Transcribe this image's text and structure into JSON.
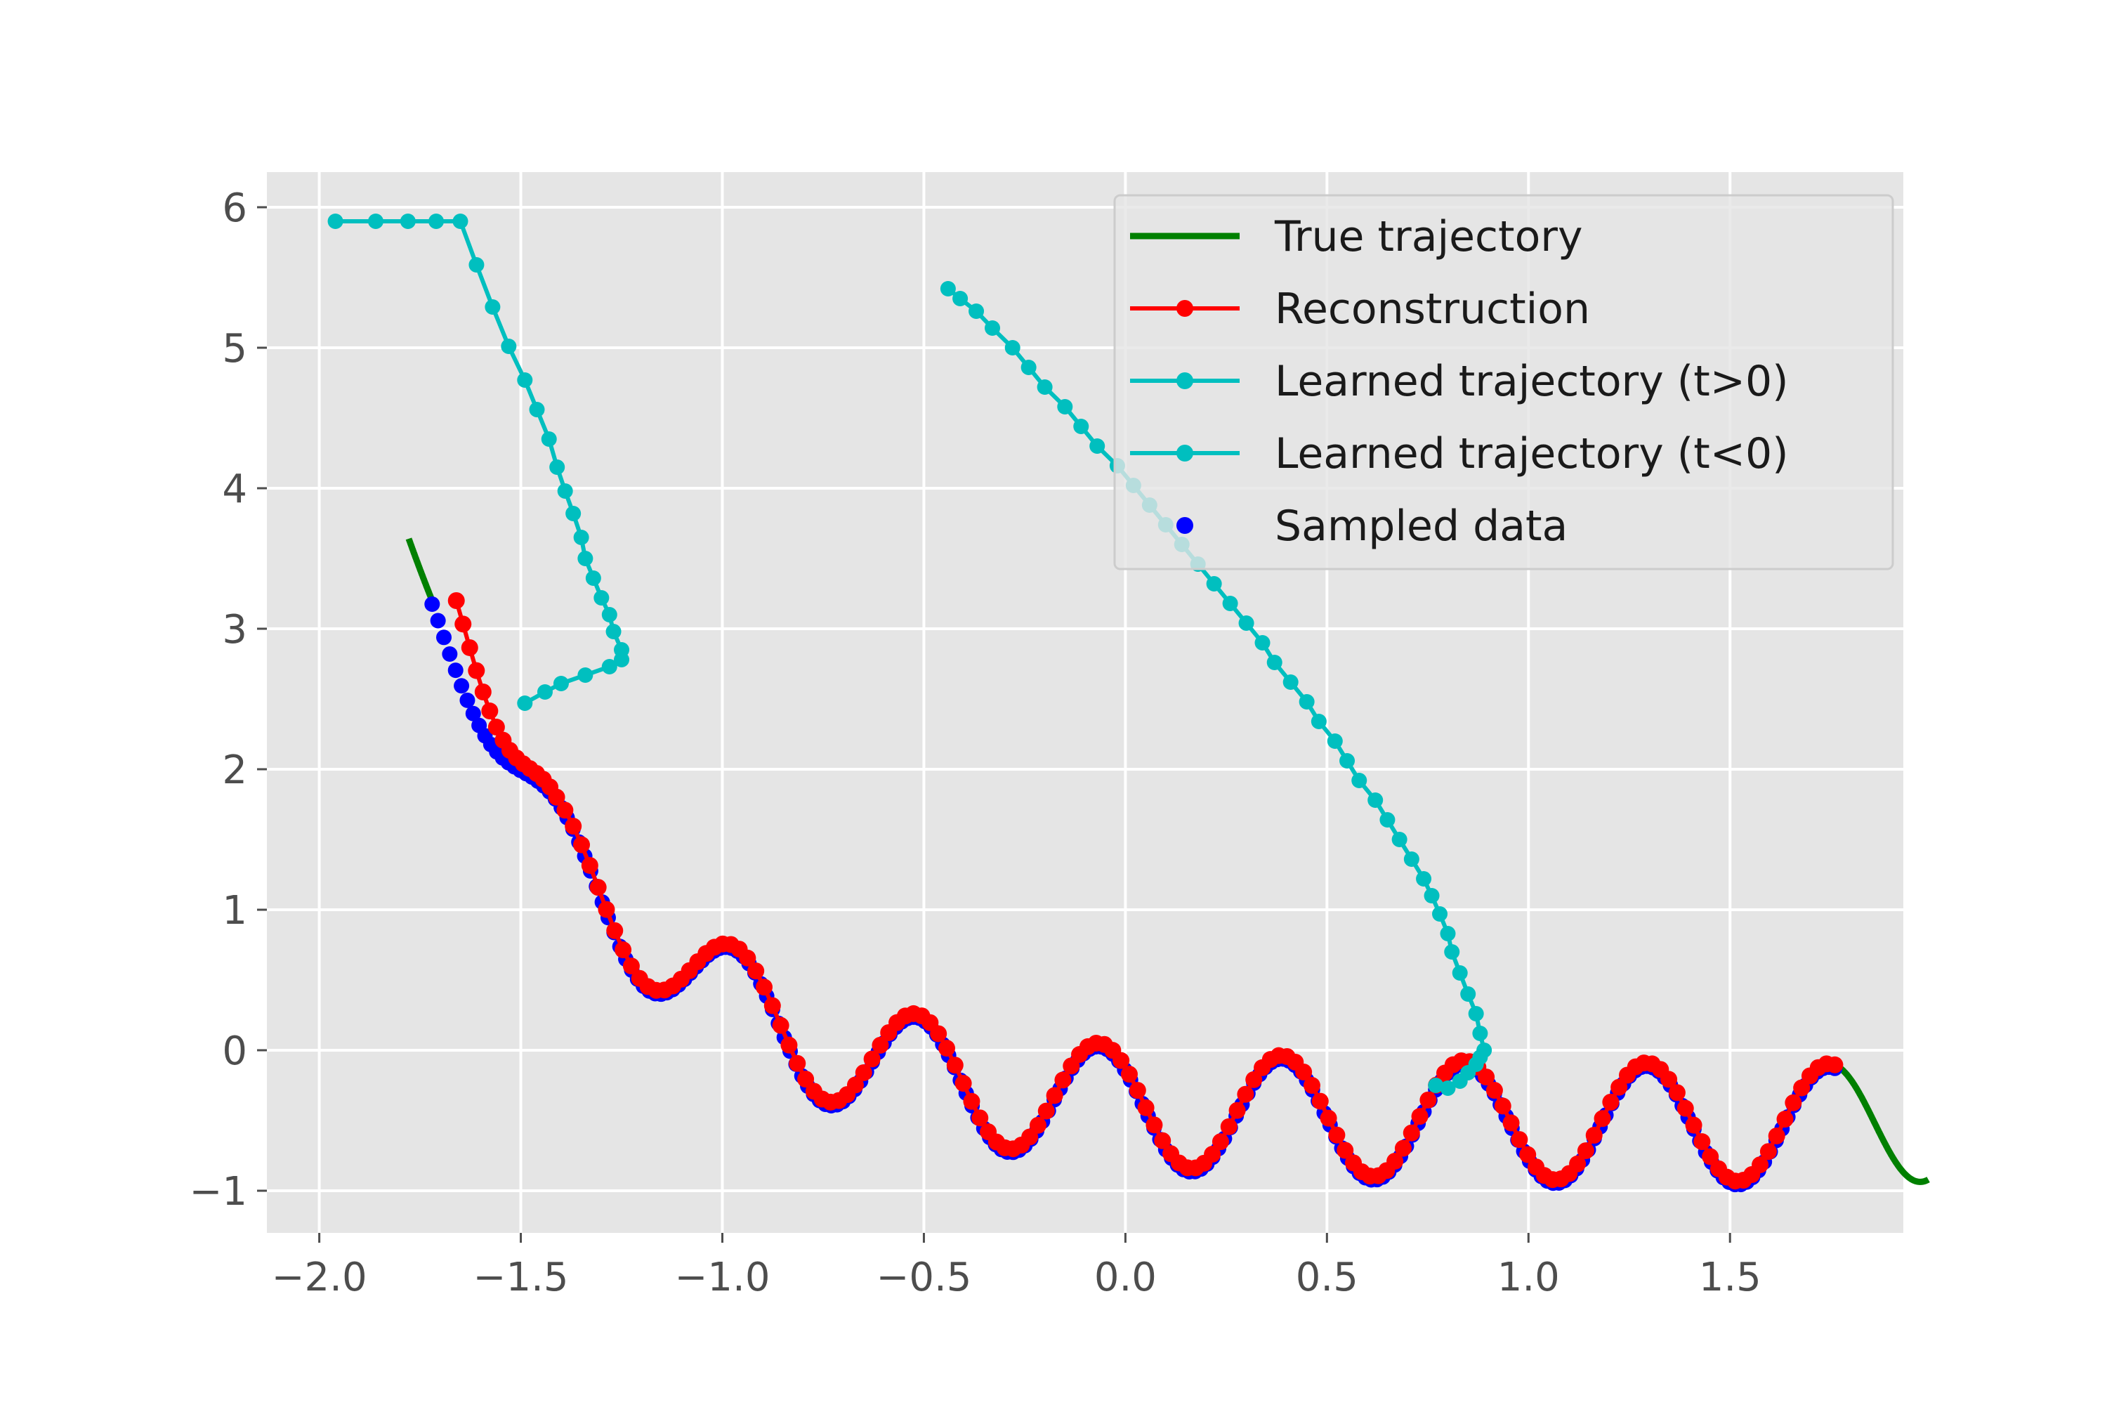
{
  "chart_data": {
    "type": "line",
    "title": "",
    "xlabel": "",
    "ylabel": "",
    "xlim": [
      -2.13,
      1.93
    ],
    "ylim": [
      -1.3,
      6.25
    ],
    "xticks": [
      -2.0,
      -1.5,
      -1.0,
      -0.5,
      0.0,
      0.5,
      1.0,
      1.5
    ],
    "xtick_labels": [
      "−2.0",
      "−1.5",
      "−1.0",
      "−0.5",
      "0.0",
      "0.5",
      "1.0",
      "1.5"
    ],
    "yticks": [
      -1,
      0,
      1,
      2,
      3,
      4,
      5,
      6
    ],
    "ytick_labels": [
      "−1",
      "0",
      "1",
      "2",
      "3",
      "4",
      "5",
      "6"
    ],
    "grid": true,
    "legend_position": "top-right",
    "background_color": "#e5e5e5",
    "series": [
      {
        "name": "True trajectory",
        "kind": "line",
        "color": "#008000",
        "t_range": [
          -0.1,
          6.4
        ],
        "segments": [
          [
            -0.1,
            0.0
          ],
          [
            6.0,
            6.4
          ]
        ]
      },
      {
        "name": "Reconstruction",
        "kind": "line-marker",
        "color": "#ff0000",
        "t_range": [
          0.0,
          6.0
        ],
        "points": 170
      },
      {
        "name": "Learned trajectory (t>0)",
        "kind": "line-marker",
        "color": "#00bfbf",
        "x": [
          0.77,
          0.8,
          0.83,
          0.85,
          0.87,
          0.88,
          0.89,
          0.88,
          0.87,
          0.85,
          0.83,
          0.81,
          0.8,
          0.78,
          0.76,
          0.74,
          0.71,
          0.68,
          0.65,
          0.62,
          0.58,
          0.55,
          0.52,
          0.48,
          0.45,
          0.41,
          0.37,
          0.34,
          0.3,
          0.26,
          0.22,
          0.18,
          0.14,
          0.1,
          0.06,
          0.02,
          -0.02,
          -0.07,
          -0.11,
          -0.15,
          -0.2,
          -0.24,
          -0.28,
          -0.33,
          -0.37,
          -0.41,
          -0.44
        ],
        "y": [
          -0.25,
          -0.27,
          -0.22,
          -0.16,
          -0.1,
          -0.05,
          0.0,
          0.12,
          0.26,
          0.4,
          0.55,
          0.7,
          0.83,
          0.97,
          1.1,
          1.22,
          1.36,
          1.5,
          1.64,
          1.78,
          1.92,
          2.06,
          2.2,
          2.34,
          2.48,
          2.62,
          2.76,
          2.9,
          3.04,
          3.18,
          3.32,
          3.46,
          3.6,
          3.74,
          3.88,
          4.02,
          4.16,
          4.3,
          4.44,
          4.58,
          4.72,
          4.86,
          5.0,
          5.14,
          5.26,
          5.35,
          5.42
        ]
      },
      {
        "name": "Learned trajectory (t<0)",
        "kind": "line-marker",
        "color": "#00bfbf",
        "x": [
          -1.49,
          -1.44,
          -1.4,
          -1.34,
          -1.28,
          -1.25,
          -1.25,
          -1.27,
          -1.28,
          -1.3,
          -1.32,
          -1.34,
          -1.35,
          -1.37,
          -1.39,
          -1.41,
          -1.43,
          -1.46,
          -1.49,
          -1.53,
          -1.57,
          -1.61,
          -1.65,
          -1.71,
          -1.78,
          -1.86,
          -1.96
        ],
        "y": [
          2.47,
          2.55,
          2.61,
          2.67,
          2.73,
          2.78,
          2.85,
          2.98,
          3.1,
          3.22,
          3.36,
          3.5,
          3.65,
          3.82,
          3.98,
          4.15,
          4.35,
          4.56,
          4.77,
          5.01,
          5.29,
          5.59,
          5.9,
          5.9,
          5.9,
          5.9,
          5.9
        ]
      },
      {
        "name": "Sampled data",
        "kind": "scatter",
        "color": "#0000ff",
        "t_range": [
          0.0,
          6.0
        ],
        "points": 240
      }
    ]
  },
  "legend": [
    {
      "label": "True trajectory",
      "style": "line",
      "color": "#008000"
    },
    {
      "label": "Reconstruction",
      "style": "line-marker",
      "color": "#ff0000"
    },
    {
      "label": "Learned trajectory (t>0)",
      "style": "line-marker",
      "color": "#00bfbf"
    },
    {
      "label": "Learned trajectory (t<0)",
      "style": "line-marker",
      "color": "#00bfbf"
    },
    {
      "label": "Sampled data",
      "style": "scatter",
      "color": "#0000ff"
    }
  ]
}
